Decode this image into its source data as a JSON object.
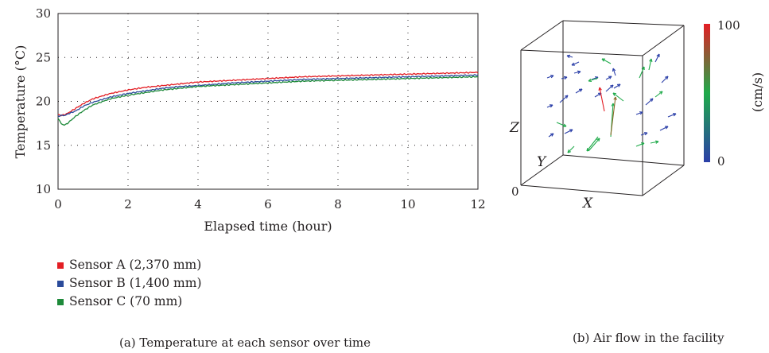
{
  "chart_data": [
    {
      "type": "line",
      "title": "",
      "xlabel": "Elapsed time (hour)",
      "ylabel": "Temperature (°C)",
      "xlim": [
        0,
        12
      ],
      "ylim": [
        10,
        30
      ],
      "xticks": [
        "0",
        "2",
        "4",
        "6",
        "8",
        "10",
        "12"
      ],
      "yticks": [
        "10",
        "15",
        "20",
        "25",
        "30"
      ],
      "grid": "dotted",
      "legend_position": "below",
      "x": [
        0,
        0.1,
        0.2,
        0.3,
        0.5,
        0.75,
        1,
        1.5,
        2,
        2.5,
        3,
        3.5,
        4,
        5,
        6,
        7,
        8,
        9,
        10,
        11,
        12
      ],
      "series": [
        {
          "name": "Sensor A (2,370 mm)",
          "color": "#e31e24",
          "values": [
            18.5,
            18.4,
            18.5,
            18.7,
            19.2,
            19.8,
            20.3,
            20.9,
            21.3,
            21.6,
            21.8,
            22.0,
            22.2,
            22.4,
            22.6,
            22.8,
            22.9,
            23.0,
            23.1,
            23.2,
            23.3
          ]
        },
        {
          "name": "Sensor B (1,400 mm)",
          "color": "#2b4b9b",
          "values": [
            18.3,
            18.4,
            18.4,
            18.6,
            18.9,
            19.5,
            19.9,
            20.5,
            20.9,
            21.2,
            21.5,
            21.7,
            21.8,
            22.1,
            22.3,
            22.5,
            22.6,
            22.7,
            22.8,
            22.9,
            23.0
          ]
        },
        {
          "name": "Sensor C (70 mm)",
          "color": "#1e8a3a",
          "values": [
            18.1,
            17.4,
            17.3,
            17.6,
            18.3,
            19.0,
            19.6,
            20.3,
            20.7,
            21.0,
            21.3,
            21.5,
            21.7,
            21.9,
            22.1,
            22.3,
            22.4,
            22.5,
            22.6,
            22.7,
            22.8
          ]
        }
      ]
    },
    {
      "type": "vector_field_3d",
      "axis_labels": {
        "x": "X",
        "y": "Y",
        "z": "Z",
        "origin": "0"
      },
      "colorbar": {
        "min": "0",
        "max": "100",
        "unit": "(cm/s)",
        "colors": [
          "#2b3fa8",
          "#1faa4a",
          "#e31e24"
        ]
      }
    }
  ],
  "captions": {
    "a": "(a)  Temperature at each sensor over time",
    "b": "(b)  Air flow in the facility"
  }
}
